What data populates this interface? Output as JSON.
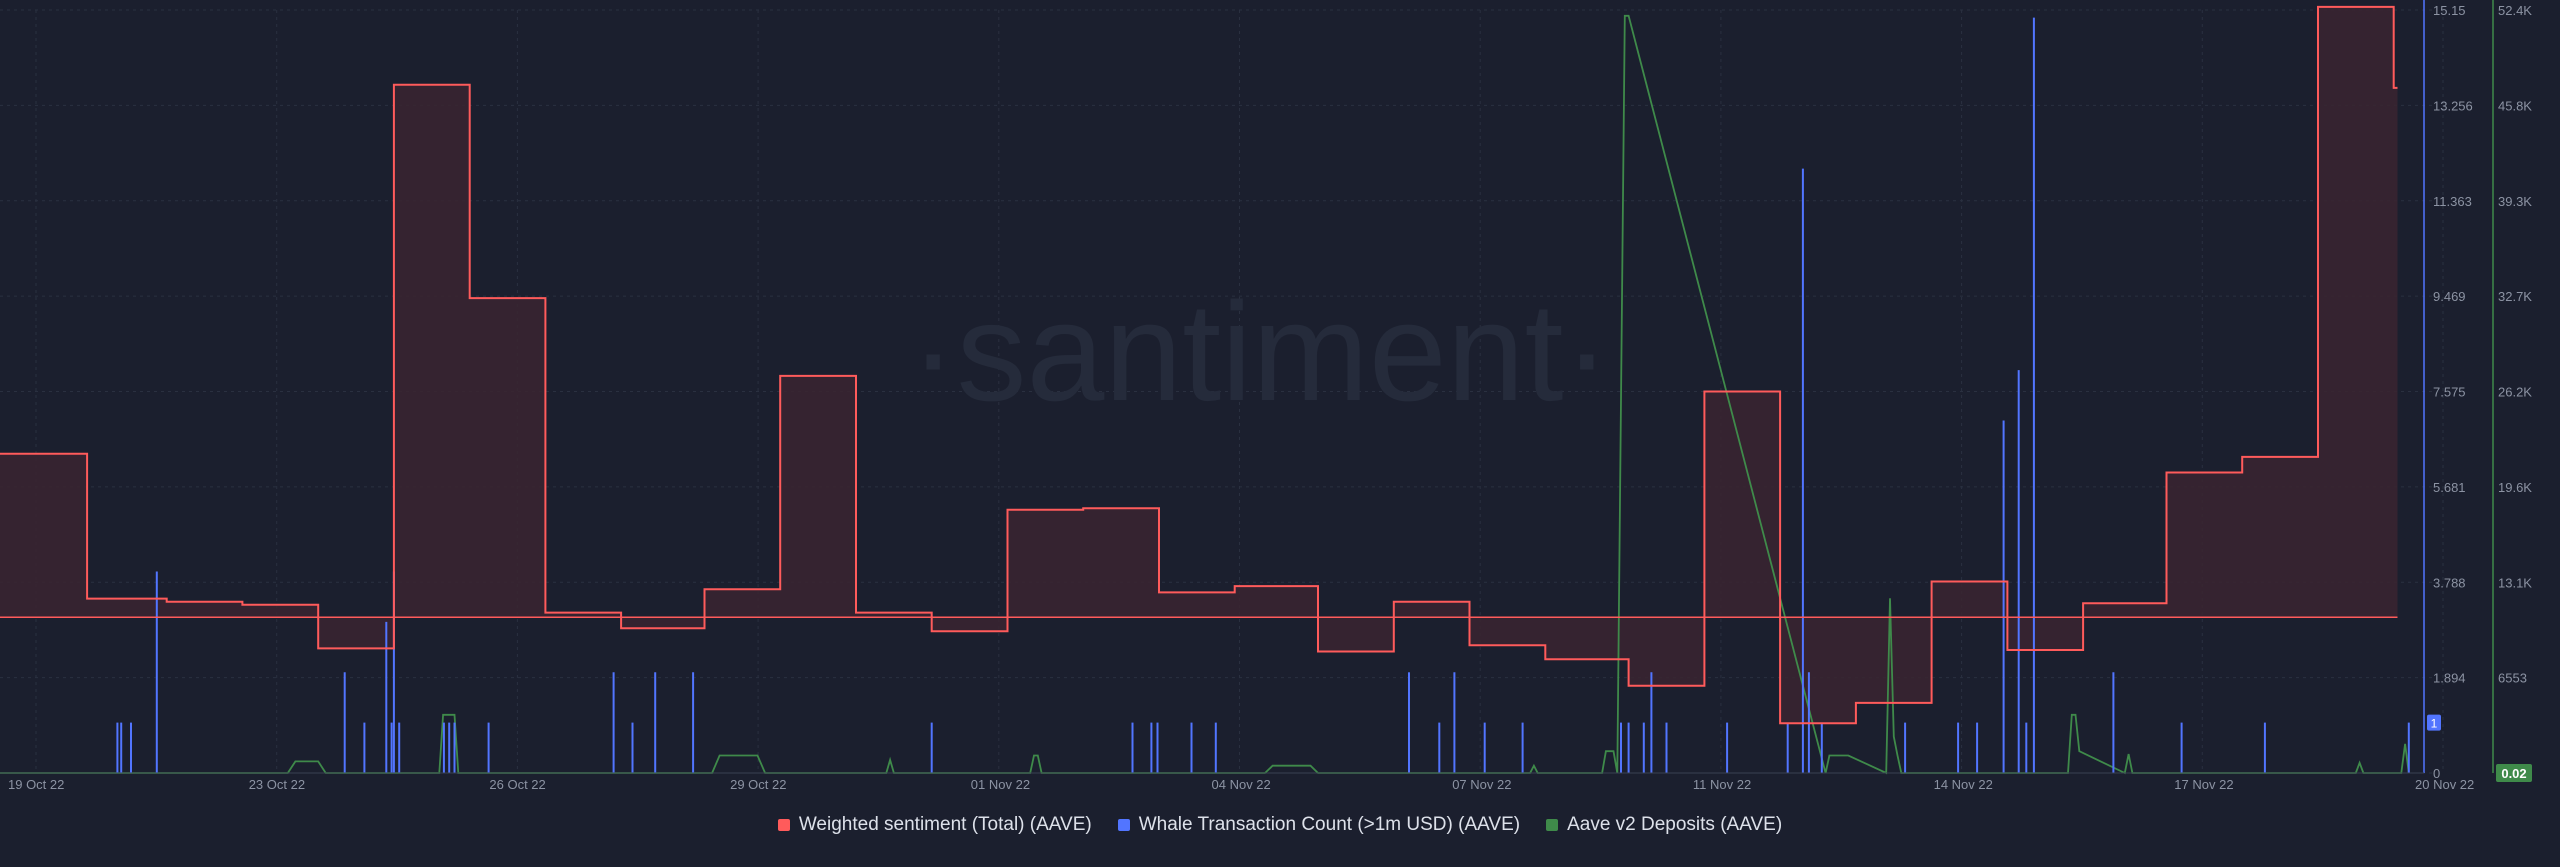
{
  "watermark": "·santiment·",
  "colors": {
    "background": "#1b1f2e",
    "grid": "#2a3040",
    "axis_text": "#8c93a3",
    "sentiment": "#ff5b5b",
    "sentiment_fill": "#3a2430",
    "whale": "#5275ff",
    "deposits": "#3f8a4a"
  },
  "chart_data": {
    "type": "line",
    "x_ticks": [
      "19 Oct 22",
      "23 Oct 22",
      "26 Oct 22",
      "29 Oct 22",
      "01 Nov 22",
      "04 Nov 22",
      "07 Nov 22",
      "11 Nov 22",
      "14 Nov 22",
      "17 Nov 22",
      "20 Nov 22"
    ],
    "x_range_days": [
      0,
      32
    ],
    "grid": true,
    "legend_position": "bottom-center",
    "y_axes": [
      {
        "id": "sentiment",
        "ticks": [],
        "zero_line": true
      },
      {
        "id": "whale",
        "ticks": [
          "0",
          "1.894",
          "3.788",
          "5.681",
          "7.575",
          "9.469",
          "11.363",
          "13.256",
          "15.15"
        ],
        "range": [
          0,
          15.15
        ],
        "current_value": "1"
      },
      {
        "id": "deposits",
        "ticks": [
          "0",
          "6553",
          "13.1K",
          "19.6K",
          "26.2K",
          "32.7K",
          "39.3K",
          "45.8K",
          "52.4K"
        ],
        "range": [
          0,
          52400
        ],
        "current_value": "0.02"
      }
    ],
    "series": [
      {
        "name": "Weighted sentiment (Total) (AAVE)",
        "kind": "step-area",
        "axis": "sentiment",
        "range": [
          -1.0,
          3.9
        ],
        "x": [
          0,
          1.15,
          2.2,
          3.2,
          4.2,
          5.2,
          6.2,
          7.2,
          8.2,
          9.3,
          10.3,
          11.3,
          12.3,
          13.3,
          14.3,
          15.3,
          16.3,
          17.4,
          18.4,
          19.4,
          20.4,
          21.5,
          22.5,
          23.5,
          24.5,
          25.5,
          26.5,
          27.5,
          28.6,
          29.6,
          30.6,
          31.6
        ],
        "values": [
          1.05,
          0.12,
          0.1,
          0.08,
          -0.2,
          3.42,
          2.05,
          0.03,
          -0.07,
          0.18,
          1.55,
          0.03,
          -0.09,
          0.69,
          0.7,
          0.16,
          0.2,
          -0.22,
          0.1,
          -0.18,
          -0.27,
          -0.44,
          1.45,
          -0.68,
          -0.55,
          0.23,
          -0.21,
          0.09,
          0.93,
          1.03,
          3.92,
          3.4
        ]
      },
      {
        "name": "Whale Transaction Count (>1m USD) (AAVE)",
        "kind": "spikes",
        "axis": "whale",
        "x": [
          1.55,
          1.6,
          1.73,
          2.07,
          4.55,
          4.81,
          5.1,
          5.17,
          5.2,
          5.27,
          5.86,
          5.93,
          6.0,
          6.45,
          8.1,
          8.35,
          8.65,
          9.15,
          12.3,
          14.95,
          15.2,
          15.28,
          15.73,
          16.05,
          18.6,
          19.0,
          19.2,
          19.6,
          20.1,
          21.4,
          21.5,
          21.7,
          21.8,
          22.0,
          22.8,
          23.6,
          23.8,
          23.88,
          24.05,
          25.15,
          25.85,
          26.1,
          26.45,
          26.65,
          26.75,
          26.85,
          27.9,
          28.8,
          29.9,
          31.8
        ],
        "values": [
          1,
          1,
          1,
          4,
          2,
          1,
          3,
          1,
          4,
          1,
          1,
          1,
          1,
          1,
          2,
          1,
          2,
          2,
          1,
          1,
          1,
          1,
          1,
          1,
          2,
          1,
          2,
          1,
          1,
          1,
          1,
          1,
          2,
          1,
          1,
          1,
          12,
          2,
          1,
          1,
          1,
          1,
          7,
          8,
          1,
          15,
          2,
          1,
          1,
          1
        ]
      },
      {
        "name": "Aave v2 Deposits (AAVE)",
        "kind": "line",
        "axis": "deposits",
        "x": [
          0,
          3.8,
          3.9,
          4.2,
          4.3,
          5.8,
          5.85,
          6.0,
          6.05,
          9.4,
          9.5,
          10.0,
          10.1,
          11.7,
          11.75,
          11.8,
          13.6,
          13.65,
          13.7,
          13.75,
          16.7,
          16.8,
          17.3,
          17.4,
          20.2,
          20.25,
          20.3,
          21.15,
          21.2,
          21.3,
          21.35,
          21.45,
          21.5,
          24.1,
          24.15,
          24.4,
          24.9,
          24.95,
          25.0,
          25.05,
          25.1,
          27.3,
          27.35,
          27.4,
          27.45,
          28.05,
          28.1,
          28.15,
          31.1,
          31.15,
          31.2,
          31.7,
          31.75,
          31.8
        ],
        "values": [
          0,
          0,
          800,
          800,
          0,
          0,
          4000,
          4000,
          0,
          0,
          1200,
          1200,
          0,
          0,
          900,
          0,
          0,
          1200,
          1200,
          0,
          0,
          500,
          500,
          0,
          0,
          500,
          0,
          0,
          1500,
          1500,
          0,
          52000,
          52000,
          0,
          1200,
          1200,
          0,
          12000,
          2500,
          1200,
          0,
          0,
          4000,
          4000,
          1500,
          0,
          1300,
          0,
          0,
          700,
          0,
          0,
          2000,
          0
        ]
      }
    ]
  }
}
